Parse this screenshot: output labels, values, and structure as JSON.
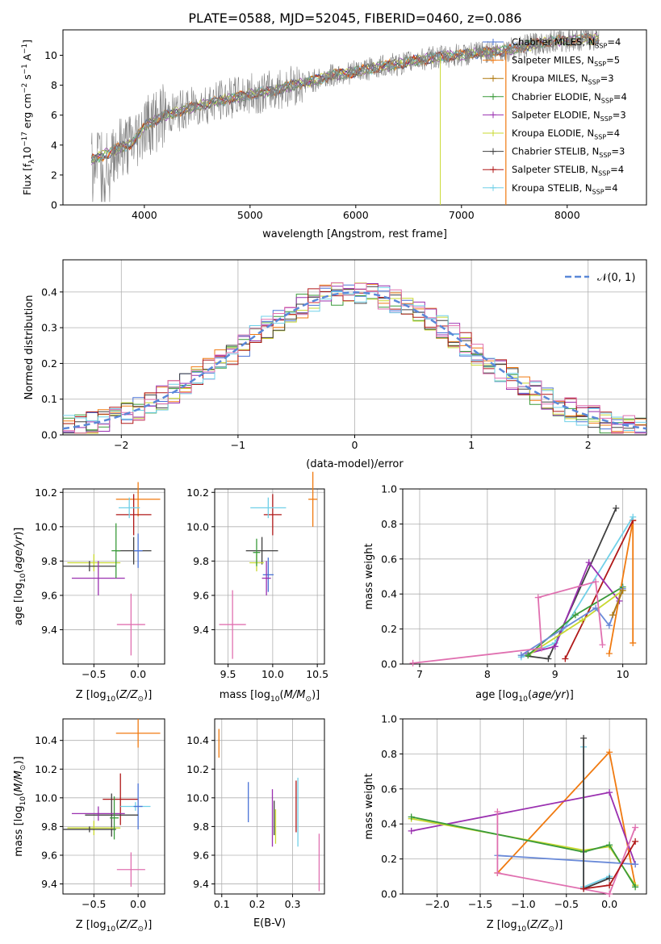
{
  "figure": {
    "title": "PLATE=0588, MJD=52045, FIBERID=0460, z=0.086"
  },
  "colors": {
    "Chabrier MILES": "#4a72d6",
    "Salpeter MILES": "#f07a10",
    "Kroupa MILES": "#b07a10",
    "Chabrier ELODIE": "#3a9a3a",
    "Salpeter ELODIE": "#9a30b0",
    "Kroupa ELODIE": "#c8d830",
    "Chabrier STELIB": "#404040",
    "Salpeter STELIB": "#b01818",
    "Kroupa STELIB": "#70d0e8",
    "Salpeter MILES line": "#e88020",
    "Chabrier MILES alt": "#6a8ad8",
    "Kroupa MILES alt": "#e070b0",
    "Normal": "#5a88d8",
    "data": "#808080"
  },
  "chart_data": [
    {
      "id": "spectrum",
      "type": "line",
      "title": "PLATE=0588, MJD=52045, FIBERID=0460, z=0.086",
      "xlabel": "wavelength [Angstrom, rest frame]",
      "ylabel": "Flux [f_λ10^-17 erg cm^-2 s^-1 A^-1]",
      "xlim": [
        3230,
        8750
      ],
      "ylim": [
        0,
        11.7
      ],
      "xticks": [
        4000,
        5000,
        6000,
        7000,
        8000
      ],
      "yticks": [
        0,
        2,
        4,
        6,
        8,
        10
      ],
      "legend_position": "right",
      "legend": [
        "Chabrier MILES, N_SSP=4",
        "Salpeter MILES, N_SSP=5",
        "Kroupa MILES, N_SSP=3",
        "Chabrier ELODIE, N_SSP=4",
        "Salpeter ELODIE, N_SSP=3",
        "Kroupa ELODIE, N_SSP=4",
        "Chabrier STELIB, N_SSP=3",
        "Salpeter STELIB, N_SSP=4",
        "Kroupa STELIB, N_SSP=4"
      ],
      "legend_colors": [
        "#4a72d6",
        "#f07a10",
        "#b07a10",
        "#3a9a3a",
        "#9a30b0",
        "#c8d830",
        "#404040",
        "#b01818",
        "#70d0e8"
      ],
      "continuum": {
        "x": [
          3500,
          3700,
          3900,
          4000,
          4200,
          4400,
          4600,
          4800,
          5000,
          5200,
          5400,
          5600,
          5800,
          6000,
          6200,
          6400,
          6600,
          6800,
          7000,
          7200,
          7400,
          7600,
          7800,
          8000,
          8200,
          8300
        ],
        "y": [
          3.0,
          3.6,
          4.2,
          5.3,
          6.0,
          6.4,
          6.8,
          7.1,
          7.4,
          7.6,
          8.0,
          8.3,
          8.7,
          8.9,
          9.2,
          9.4,
          9.7,
          9.9,
          10.0,
          10.2,
          10.3,
          10.6,
          10.9,
          11.0,
          11.1,
          11.1
        ]
      }
    },
    {
      "id": "residuals",
      "type": "line",
      "xlabel": "(data-model)/error",
      "ylabel": "Normed distribution",
      "xlim": [
        -2.5,
        2.5
      ],
      "ylim": [
        0,
        0.49
      ],
      "xticks": [
        -2,
        -1,
        0,
        1,
        2
      ],
      "yticks": [
        0.0,
        0.1,
        0.2,
        0.3,
        0.4
      ],
      "legend": [
        "N(0,1)"
      ],
      "legend_position": "top-right",
      "bin_width": 0.1
    },
    {
      "id": "age_vs_Z",
      "type": "scatter",
      "xlabel": "Z [log10(Z/Z⊙)]",
      "ylabel": "age  [log10(age/yr)]",
      "xlim": [
        -0.85,
        0.3
      ],
      "ylim": [
        9.2,
        10.22
      ],
      "xticks": [
        -0.5,
        0.0
      ],
      "yticks": [
        9.4,
        9.6,
        9.8,
        10.0,
        10.2
      ],
      "points": [
        {
          "x": 0.0,
          "y": 10.16,
          "xerr": 0.25,
          "yerr": 0.1,
          "color": "#f07a10"
        },
        {
          "x": -0.05,
          "y": 10.07,
          "xerr": 0.2,
          "yerr": 0.12,
          "color": "#b01818"
        },
        {
          "x": -0.1,
          "y": 10.11,
          "xerr": 0.12,
          "yerr": 0.06,
          "color": "#70d0e8"
        },
        {
          "x": -0.05,
          "y": 9.86,
          "xerr": 0.2,
          "yerr": 0.08,
          "color": "#404040"
        },
        {
          "x": 0.0,
          "y": 9.86,
          "xerr": 0.05,
          "yerr": 0.1,
          "color": "#4a72d6"
        },
        {
          "x": -0.5,
          "y": 9.79,
          "xerr": 0.3,
          "yerr": 0.05,
          "color": "#c8d830"
        },
        {
          "x": -0.55,
          "y": 9.77,
          "xerr": 0.3,
          "yerr": 0.03,
          "color": "#404040"
        },
        {
          "x": -0.45,
          "y": 9.7,
          "xerr": 0.3,
          "yerr": 0.1,
          "color": "#9a30b0"
        },
        {
          "x": -0.25,
          "y": 9.86,
          "xerr": 0.05,
          "yerr": 0.16,
          "color": "#3a9a3a"
        },
        {
          "x": -0.08,
          "y": 9.43,
          "xerr": 0.16,
          "yerr": 0.18,
          "color": "#e070b0"
        }
      ]
    },
    {
      "id": "age_vs_mass",
      "type": "scatter",
      "xlabel": "mass [log10(M/M⊙)]",
      "ylabel": "",
      "xlim": [
        9.35,
        10.58
      ],
      "ylim": [
        9.2,
        10.22
      ],
      "xticks": [
        9.5,
        10.0,
        10.5
      ],
      "yticks": [
        9.4,
        9.6,
        9.8,
        10.0,
        10.2
      ],
      "points": [
        {
          "x": 10.45,
          "y": 10.16,
          "xerr": 0.05,
          "yerr": 0.16,
          "color": "#f07a10"
        },
        {
          "x": 10.0,
          "y": 10.07,
          "xerr": 0.1,
          "yerr": 0.12,
          "color": "#b01818"
        },
        {
          "x": 9.95,
          "y": 10.11,
          "xerr": 0.2,
          "yerr": 0.06,
          "color": "#70d0e8"
        },
        {
          "x": 9.88,
          "y": 9.86,
          "xerr": 0.18,
          "yerr": 0.08,
          "color": "#404040"
        },
        {
          "x": 9.95,
          "y": 9.72,
          "xerr": 0.06,
          "yerr": 0.1,
          "color": "#4a72d6"
        },
        {
          "x": 9.82,
          "y": 9.79,
          "xerr": 0.08,
          "yerr": 0.05,
          "color": "#c8d830"
        },
        {
          "x": 9.82,
          "y": 9.85,
          "xerr": 0.04,
          "yerr": 0.08,
          "color": "#3a9a3a"
        },
        {
          "x": 9.93,
          "y": 9.7,
          "xerr": 0.05,
          "yerr": 0.1,
          "color": "#9a30b0"
        },
        {
          "x": 9.55,
          "y": 9.43,
          "xerr": 0.15,
          "yerr": 0.2,
          "color": "#e070b0"
        }
      ]
    },
    {
      "id": "massweight_vs_age",
      "type": "line",
      "xlabel": "age  [log10(age/yr)]",
      "ylabel": "mass weight",
      "xlim": [
        6.75,
        10.35
      ],
      "ylim": [
        0.0,
        1.0
      ],
      "xticks": [
        7,
        8,
        9,
        10
      ],
      "yticks": [
        0.0,
        0.2,
        0.4,
        0.6,
        0.8,
        1.0
      ],
      "series": [
        {
          "color": "#f07a10",
          "x": [
            9.8,
            10.15,
            10.15
          ],
          "y": [
            0.06,
            0.82,
            0.12
          ]
        },
        {
          "color": "#b01818",
          "x": [
            9.15,
            10.15
          ],
          "y": [
            0.03,
            0.82
          ]
        },
        {
          "color": "#404040",
          "x": [
            8.5,
            8.9,
            9.9
          ],
          "y": [
            0.05,
            0.03,
            0.89
          ]
        },
        {
          "color": "#70d0e8",
          "x": [
            8.5,
            9.0,
            10.15
          ],
          "y": [
            0.04,
            0.12,
            0.84
          ]
        },
        {
          "color": "#9a30b0",
          "x": [
            8.6,
            9.0,
            9.5,
            9.95
          ],
          "y": [
            0.06,
            0.1,
            0.58,
            0.36
          ]
        },
        {
          "color": "#c8d830",
          "x": [
            8.6,
            9.4,
            10.0
          ],
          "y": [
            0.05,
            0.25,
            0.42
          ]
        },
        {
          "color": "#3a9a3a",
          "x": [
            8.6,
            9.3,
            10.0
          ],
          "y": [
            0.05,
            0.28,
            0.44
          ]
        },
        {
          "color": "#6a8ad8",
          "x": [
            8.5,
            9.6,
            9.8,
            10.0
          ],
          "y": [
            0.05,
            0.32,
            0.22,
            0.43
          ]
        },
        {
          "color": "#e070b0",
          "x": [
            6.9,
            8.8,
            8.75,
            9.6,
            9.7
          ],
          "y": [
            0.005,
            0.09,
            0.38,
            0.47,
            0.11
          ]
        },
        {
          "color": "#b07a10",
          "x": [
            9.85,
            10.0
          ],
          "y": [
            0.28,
            0.42
          ]
        }
      ]
    },
    {
      "id": "mass_vs_Z",
      "type": "scatter",
      "xlabel": "Z [log10(Z/Z⊙)]",
      "ylabel": "mass [log10(M/M⊙)]",
      "xlim": [
        -0.85,
        0.3
      ],
      "ylim": [
        9.33,
        10.55
      ],
      "xticks": [
        -0.5,
        0.0
      ],
      "yticks": [
        9.4,
        9.6,
        9.8,
        10.0,
        10.2,
        10.4
      ],
      "points": [
        {
          "x": 0.0,
          "y": 10.45,
          "xerr": 0.25,
          "yerr": 0.1,
          "color": "#f07a10"
        },
        {
          "x": -0.2,
          "y": 9.99,
          "xerr": 0.2,
          "yerr": 0.18,
          "color": "#b01818"
        },
        {
          "x": -0.03,
          "y": 9.94,
          "xerr": 0.17,
          "yerr": 0.03,
          "color": "#70d0e8"
        },
        {
          "x": 0.0,
          "y": 9.94,
          "xerr": 0.05,
          "yerr": 0.16,
          "color": "#4a72d6"
        },
        {
          "x": -0.3,
          "y": 9.88,
          "xerr": 0.3,
          "yerr": 0.15,
          "color": "#404040"
        },
        {
          "x": -0.45,
          "y": 9.89,
          "xerr": 0.3,
          "yerr": 0.05,
          "color": "#9a30b0"
        },
        {
          "x": -0.5,
          "y": 9.79,
          "xerr": 0.3,
          "yerr": 0.05,
          "color": "#c8d830"
        },
        {
          "x": -0.55,
          "y": 9.78,
          "xerr": 0.3,
          "yerr": 0.02,
          "color": "#404040"
        },
        {
          "x": -0.27,
          "y": 9.86,
          "xerr": 0.05,
          "yerr": 0.15,
          "color": "#3a9a3a"
        },
        {
          "x": -0.08,
          "y": 9.5,
          "xerr": 0.16,
          "yerr": 0.12,
          "color": "#e070b0"
        }
      ]
    },
    {
      "id": "mass_vs_EBV",
      "type": "scatter",
      "xlabel": "E(B-V)",
      "ylabel": "",
      "xlim": [
        0.08,
        0.39
      ],
      "ylim": [
        9.33,
        10.55
      ],
      "xticks": [
        0.1,
        0.2,
        0.3
      ],
      "yticks": [
        9.4,
        9.6,
        9.8,
        10.0,
        10.2,
        10.4
      ],
      "points": [
        {
          "x": 0.092,
          "y": 10.38,
          "yerr": 0.1,
          "color": "#f07a10"
        },
        {
          "x": 0.175,
          "y": 9.97,
          "yerr": 0.14,
          "color": "#4a72d6"
        },
        {
          "x": 0.243,
          "y": 9.86,
          "yerr": 0.2,
          "color": "#9a30b0"
        },
        {
          "x": 0.248,
          "y": 9.86,
          "yerr": 0.12,
          "color": "#404040"
        },
        {
          "x": 0.252,
          "y": 9.8,
          "yerr": 0.12,
          "color": "#c8d830"
        },
        {
          "x": 0.31,
          "y": 9.94,
          "yerr": 0.18,
          "color": "#b01818"
        },
        {
          "x": 0.315,
          "y": 9.9,
          "yerr": 0.24,
          "color": "#70d0e8"
        },
        {
          "x": 0.375,
          "y": 9.55,
          "yerr": 0.2,
          "color": "#e070b0"
        }
      ]
    },
    {
      "id": "massweight_vs_Z",
      "type": "line",
      "xlabel": "Z [log10(Z/Z⊙)]",
      "ylabel": "mass weight",
      "xlim": [
        -2.4,
        0.43
      ],
      "ylim": [
        0.0,
        1.0
      ],
      "xticks": [
        -2.0,
        -1.5,
        -1.0,
        -0.5,
        0.0
      ],
      "yticks": [
        0.0,
        0.2,
        0.4,
        0.6,
        0.8,
        1.0
      ],
      "series": [
        {
          "color": "#f07a10",
          "x": [
            -1.3,
            0.0,
            0.3
          ],
          "y": [
            0.12,
            0.81,
            0.05
          ]
        },
        {
          "color": "#9a30b0",
          "x": [
            -2.3,
            0.0,
            0.3
          ],
          "y": [
            0.36,
            0.58,
            0.17
          ]
        },
        {
          "color": "#c8d830",
          "x": [
            -2.3,
            -0.3,
            0.0,
            0.3
          ],
          "y": [
            0.43,
            0.25,
            0.27,
            0.05
          ]
        },
        {
          "color": "#3a9a3a",
          "x": [
            -2.3,
            -0.3,
            0.0,
            0.3
          ],
          "y": [
            0.44,
            0.24,
            0.28,
            0.04
          ]
        },
        {
          "color": "#6a8ad8",
          "x": [
            -1.3,
            0.3
          ],
          "y": [
            0.22,
            0.17
          ]
        },
        {
          "color": "#e070b0",
          "x": [
            -1.3,
            -1.3,
            0.0,
            0.3
          ],
          "y": [
            0.47,
            0.12,
            0.0,
            0.38
          ]
        },
        {
          "color": "#70d0e8",
          "x": [
            -0.3,
            -0.3,
            0.0
          ],
          "y": [
            0.84,
            0.04,
            0.1
          ]
        },
        {
          "color": "#404040",
          "x": [
            -0.3,
            -0.3,
            0.0
          ],
          "y": [
            0.89,
            0.03,
            0.09
          ]
        },
        {
          "color": "#b01818",
          "x": [
            -0.3,
            0.0,
            0.3
          ],
          "y": [
            0.03,
            0.05,
            0.3
          ]
        }
      ]
    }
  ]
}
